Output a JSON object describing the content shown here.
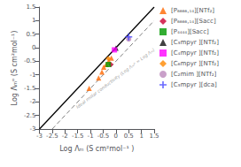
{
  "chart_data": {
    "type": "scatter",
    "xlabel": "Log Λₘ (S cm²mol⁻¹ )",
    "ylabel": "Log Λₘᵒ (S cm²mol⁻¹)",
    "xlim": [
      -3,
      1.5
    ],
    "ylim": [
      -3,
      1.5
    ],
    "xticks": [
      -3,
      -2.5,
      -2,
      -1.5,
      -1,
      -0.5,
      0,
      0.5,
      1,
      1.5
    ],
    "yticks": [
      -3,
      -2.5,
      -2,
      -1.5,
      -1,
      -0.5,
      0,
      0.5,
      1,
      1.5
    ],
    "grid": false,
    "legend": "right",
    "annotations": [
      {
        "text": "Ideal molar conductivity (Log Λₘᵒ = Log Λₘ)",
        "x": -1.55,
        "y": -2.2,
        "color": "#808080"
      }
    ],
    "series": [
      {
        "type": "line",
        "color": "#000000",
        "line_style": "solid",
        "values": [
          [
            -3,
            -3
          ],
          [
            1.5,
            1.5
          ]
        ]
      },
      {
        "type": "line",
        "color": "#808080",
        "line_style": "dashed",
        "values": [
          [
            -2.5,
            -3
          ],
          [
            1.5,
            1.0
          ]
        ]
      },
      {
        "type": "scatter",
        "name": "[P₆₆₆₆,₁₄][NTf₂]",
        "color": "#FF6600",
        "marker": "triangle",
        "values": [
          [
            -0.68,
            -1.12
          ],
          [
            -0.55,
            -0.9
          ],
          [
            -0.48,
            -0.72
          ],
          [
            -0.38,
            -0.62
          ],
          [
            -0.28,
            -0.5
          ],
          [
            -0.18,
            -0.38
          ],
          [
            -1.05,
            -1.5
          ]
        ]
      },
      {
        "type": "scatter",
        "name": "[P₆₆₆₆,₁₄][Sacc]",
        "color": "#CC0033",
        "marker": "diamond",
        "values": [
          [
            -0.2,
            -0.62
          ]
        ]
      },
      {
        "type": "scatter",
        "name": "[P₄₄₄₄][Sacc]",
        "color": "#009900",
        "marker": "square",
        "values": [
          [
            -0.3,
            -0.62
          ]
        ]
      },
      {
        "type": "scatter",
        "name": "[C₃mpyr ][NTf₂]",
        "color": "#111111",
        "marker": "triangle",
        "values": [
          [
            0.0,
            -0.02
          ]
        ]
      },
      {
        "type": "scatter",
        "name": "[C₄mpyr ][NTf₂]",
        "color": "#FF00FF",
        "marker": "square",
        "values": [
          [
            -0.06,
            -0.08
          ]
        ]
      },
      {
        "type": "scatter",
        "name": "[C₆mpyr ][NTf₂]",
        "color": "#FF8800",
        "marker": "diamond",
        "values": [
          [
            -0.3,
            -0.4
          ]
        ]
      },
      {
        "type": "scatter",
        "name": "[C₂mim ][NTf₂]",
        "color": "#BB88BB",
        "marker": "circle",
        "values": [
          [
            0.5,
            0.32
          ]
        ]
      },
      {
        "type": "scatter",
        "name": "[C₃mpyr ][dca]",
        "color": "#4444FF",
        "marker": "plus",
        "values": [
          [
            0.5,
            0.4
          ]
        ]
      }
    ]
  }
}
